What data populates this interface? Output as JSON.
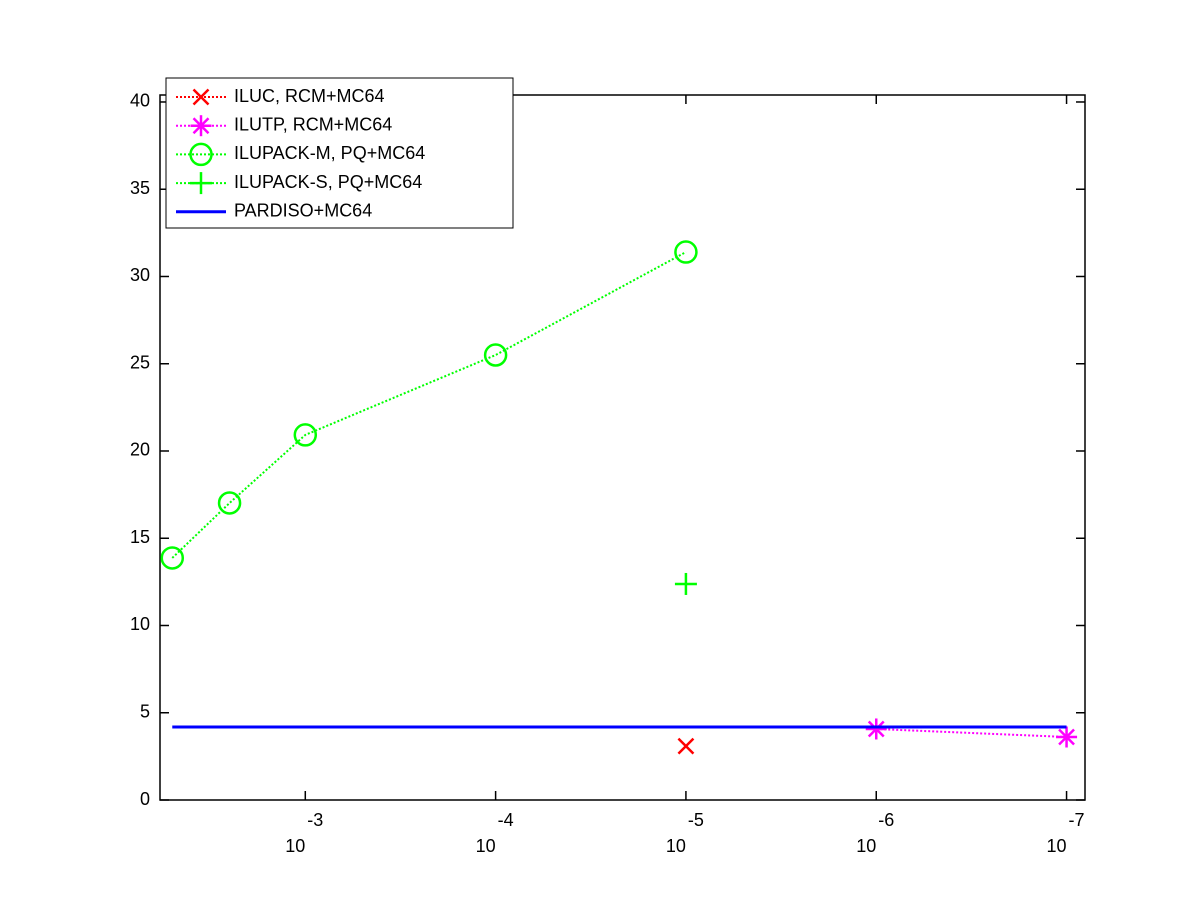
{
  "chart_data": {
    "type": "line",
    "x_scale": "log",
    "x_reversed": true,
    "xlim": [
      0.0058,
      8e-08
    ],
    "ylim": [
      0,
      40.4
    ],
    "xticks": [
      {
        "value": 0.001,
        "label": {
          "base": "10",
          "exponent": "-3"
        }
      },
      {
        "value": 0.0001,
        "label": {
          "base": "10",
          "exponent": "-4"
        }
      },
      {
        "value": 1e-05,
        "label": {
          "base": "10",
          "exponent": "-5"
        }
      },
      {
        "value": 1e-06,
        "label": {
          "base": "10",
          "exponent": "-6"
        }
      },
      {
        "value": 1e-07,
        "label": {
          "base": "10",
          "exponent": "-7"
        }
      }
    ],
    "yticks": [
      0,
      5,
      10,
      15,
      20,
      25,
      30,
      35,
      40
    ],
    "legend": "upper left",
    "series": [
      {
        "name": "ILUC, RCM+MC64",
        "color": "#ff0000",
        "marker": "x",
        "linestyle": "dotted",
        "x": [
          1e-05
        ],
        "values": [
          3.09
        ]
      },
      {
        "name": "ILUTP, RCM+MC64",
        "color": "#ff00ff",
        "marker": "asterisk",
        "linestyle": "dotted",
        "x": [
          1e-06,
          1e-07
        ],
        "values": [
          4.07,
          3.61
        ]
      },
      {
        "name": "ILUPACK-M, PQ+MC64",
        "color": "#00ff00",
        "marker": "circle",
        "linestyle": "dotted",
        "x": [
          0.005,
          0.0025,
          0.001,
          0.0001,
          1e-05
        ],
        "values": [
          13.87,
          17.02,
          20.92,
          25.5,
          31.4
        ]
      },
      {
        "name": "ILUPACK-S, PQ+MC64",
        "color": "#00ff00",
        "marker": "plus",
        "linestyle": "dotted",
        "x": [
          1e-05
        ],
        "values": [
          12.38
        ]
      },
      {
        "name": "PARDISO+MC64",
        "color": "#0000ff",
        "marker": "none",
        "linestyle": "solid",
        "x": [
          0.005,
          1e-07
        ],
        "values": [
          4.18,
          4.18
        ]
      }
    ]
  }
}
